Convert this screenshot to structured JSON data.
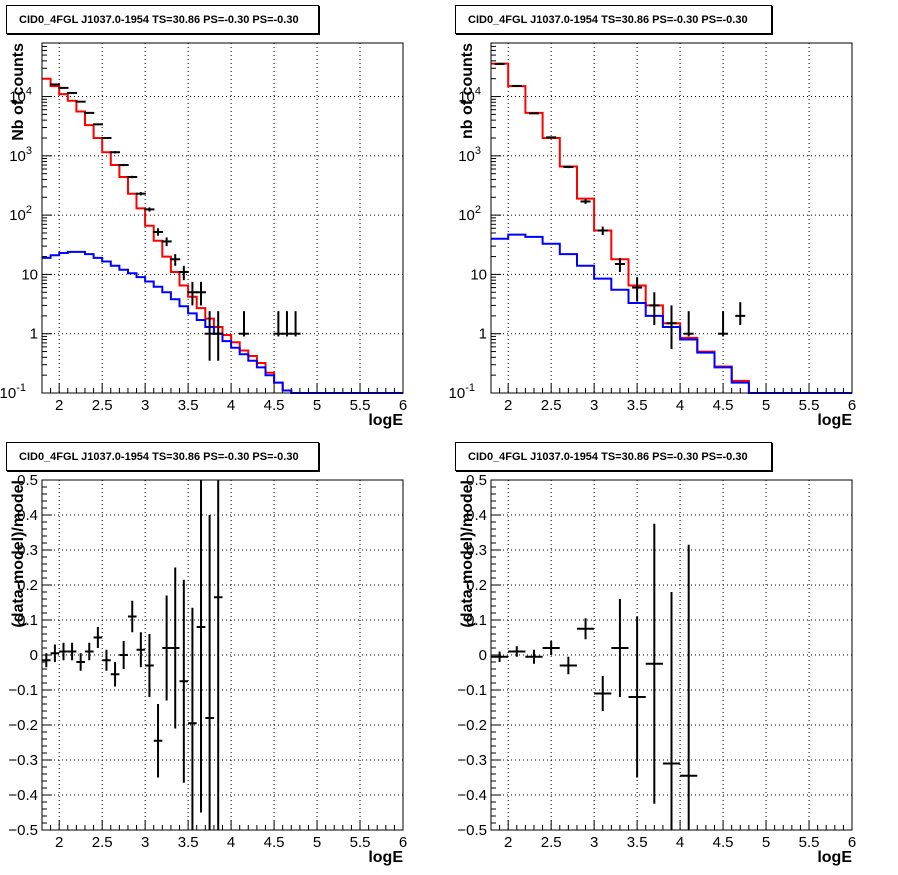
{
  "chart_data": [
    {
      "type": "line",
      "title": "CID0_4FGL J1037.0-1954 TS=30.86 PS=-0.30 PS=-0.30",
      "xlabel": "logE",
      "ylabel": "Nb of counts",
      "yscale": "log",
      "xlim": [
        1.8,
        6.0
      ],
      "ylim": [
        0.1,
        80000
      ],
      "x_ticks": [
        "2",
        "2.5",
        "3",
        "3.5",
        "4",
        "4.5",
        "5",
        "5.5",
        "6"
      ],
      "y_ticks": [
        "10^-1",
        "1",
        "10",
        "10^2",
        "10^3",
        "10^4"
      ],
      "grid": true,
      "step_edges": [
        1.8,
        1.9,
        2.0,
        2.1,
        2.2,
        2.3,
        2.4,
        2.5,
        2.6,
        2.7,
        2.8,
        2.9,
        3.0,
        3.1,
        3.2,
        3.3,
        3.4,
        3.5,
        3.6,
        3.7,
        3.8,
        3.9,
        4.0,
        4.1,
        4.2,
        4.3,
        4.4,
        4.5,
        4.6,
        4.7,
        4.8,
        4.9,
        5.0,
        5.1,
        5.2,
        5.3,
        5.4,
        5.5,
        5.6,
        5.7,
        5.8,
        5.9,
        6.0
      ],
      "series": [
        {
          "color": "#ff0000",
          "kind": "step",
          "values": [
            20000,
            15000,
            11000,
            8500,
            5600,
            3300,
            2000,
            1150,
            700,
            440,
            230,
            130,
            66,
            37,
            20,
            11,
            6.5,
            4.2,
            2.7,
            1.8,
            1.3,
            0.95,
            0.72,
            0.52,
            0.42,
            0.32,
            0.22,
            0.15,
            0.11,
            0.1,
            0.1,
            0.1,
            0.1,
            0.1,
            0.1,
            0.1,
            0.1,
            0.1,
            0.1,
            0.1,
            0.1,
            0.1
          ]
        },
        {
          "color": "#0000ff",
          "kind": "step",
          "values": [
            19,
            21,
            23,
            24,
            24,
            22,
            19,
            16.5,
            14,
            12,
            10.5,
            9,
            7.6,
            6.2,
            5.0,
            3.8,
            2.9,
            2.2,
            1.7,
            1.3,
            1.0,
            0.75,
            0.58,
            0.45,
            0.35,
            0.27,
            0.2,
            0.15,
            0.11,
            0.1,
            0.1,
            0.1,
            0.1,
            0.1,
            0.1,
            0.1,
            0.1,
            0.1,
            0.1,
            0.1,
            0.1,
            0.1
          ]
        },
        {
          "color": "#000000",
          "kind": "points",
          "x": [
            1.95,
            2.05,
            2.15,
            2.25,
            2.35,
            2.45,
            2.55,
            2.65,
            2.75,
            2.85,
            2.95,
            3.05,
            3.15,
            3.25,
            3.35,
            3.45,
            3.55,
            3.65,
            3.75,
            3.85,
            4.15,
            4.55,
            4.65,
            4.75
          ],
          "y": [
            16000,
            14000,
            11500,
            8200,
            5300,
            3400,
            2000,
            1150,
            700,
            440,
            230,
            125,
            52,
            36,
            18,
            11,
            5,
            5,
            1,
            1,
            1,
            1,
            1,
            1
          ],
          "yerr_lo": [
            15800,
            13800,
            11300,
            8100,
            5200,
            3300,
            1950,
            1100,
            670,
            420,
            215,
            115,
            45,
            30,
            14,
            8,
            3,
            3,
            0.35,
            0.35,
            0.9,
            0.9,
            0.9,
            0.9
          ],
          "yerr_hi": [
            16200,
            14200,
            11700,
            8300,
            5400,
            3500,
            2050,
            1200,
            730,
            460,
            245,
            135,
            60,
            42,
            22,
            14,
            7.5,
            7.5,
            2.4,
            2.4,
            2.4,
            2.4,
            2.4,
            2.4
          ]
        }
      ]
    },
    {
      "type": "line",
      "title": "CID0_4FGL J1037.0-1954 TS=30.86 PS=-0.30 PS=-0.30",
      "xlabel": "logE",
      "ylabel": "nb of counts",
      "yscale": "log",
      "xlim": [
        1.8,
        6.0
      ],
      "ylim": [
        0.1,
        80000
      ],
      "x_ticks": [
        "2",
        "2.5",
        "3",
        "3.5",
        "4",
        "4.5",
        "5",
        "5.5",
        "6"
      ],
      "y_ticks": [
        "10^-1",
        "1",
        "10",
        "10^2",
        "10^3",
        "10^4"
      ],
      "grid": true,
      "step_edges": [
        1.8,
        2.0,
        2.2,
        2.4,
        2.6,
        2.8,
        3.0,
        3.2,
        3.4,
        3.6,
        3.8,
        4.0,
        4.2,
        4.4,
        4.6,
        4.8,
        5.0,
        5.2,
        5.4,
        5.6,
        5.8,
        6.0
      ],
      "series": [
        {
          "color": "#ff0000",
          "kind": "step",
          "values": [
            36000,
            15000,
            5300,
            2000,
            660,
            190,
            55,
            18,
            6.5,
            3.0,
            1.5,
            0.85,
            0.5,
            0.28,
            0.16,
            0.1,
            0.1,
            0.1,
            0.1,
            0.1,
            0.1
          ]
        },
        {
          "color": "#0000ff",
          "kind": "step",
          "values": [
            40,
            47,
            43,
            33,
            22,
            14,
            8.5,
            5.5,
            3.3,
            2.0,
            1.3,
            0.8,
            0.48,
            0.27,
            0.15,
            0.1,
            0.1,
            0.1,
            0.1,
            0.1,
            0.1
          ]
        },
        {
          "color": "#000000",
          "kind": "points",
          "x": [
            1.9,
            2.1,
            2.3,
            2.5,
            2.7,
            2.9,
            3.1,
            3.3,
            3.5,
            3.7,
            3.9,
            4.1,
            4.5,
            4.7
          ],
          "y": [
            35500,
            15100,
            5200,
            2050,
            650,
            170,
            55,
            15,
            6,
            3,
            1.5,
            1,
            1,
            2
          ],
          "yerr_lo": [
            35300,
            14900,
            5100,
            2000,
            620,
            155,
            46,
            11,
            3.5,
            1.4,
            0.55,
            0.9,
            0.9,
            1.4
          ],
          "yerr_hi": [
            35700,
            15300,
            5300,
            2100,
            680,
            185,
            64,
            19,
            9,
            5,
            3,
            2.4,
            2.4,
            3.4
          ]
        }
      ]
    },
    {
      "type": "scatter",
      "title": "CID0_4FGL J1037.0-1954 TS=30.86 PS=-0.30 PS=-0.30",
      "xlabel": "logE",
      "ylabel": "(data-model)/model",
      "xlim": [
        1.8,
        6.0
      ],
      "ylim": [
        -0.5,
        0.5
      ],
      "x_ticks": [
        "2",
        "2.5",
        "3",
        "3.5",
        "4",
        "4.5",
        "5",
        "5.5",
        "6"
      ],
      "y_ticks": [
        "-0.5",
        "-0.4",
        "-0.3",
        "-0.2",
        "-0.1",
        "0",
        "0.1",
        "0.2",
        "0.3",
        "0.4",
        "0.5"
      ],
      "grid": true,
      "bin_halfwidth": 0.05,
      "points": {
        "x": [
          1.85,
          1.95,
          2.05,
          2.15,
          2.25,
          2.35,
          2.45,
          2.55,
          2.65,
          2.75,
          2.85,
          2.95,
          3.05,
          3.15,
          3.25,
          3.35,
          3.45,
          3.55,
          3.65,
          3.75,
          3.85
        ],
        "y": [
          -0.015,
          0.005,
          0.01,
          0.01,
          -0.02,
          0.01,
          0.05,
          -0.015,
          -0.055,
          0.0,
          0.11,
          0.015,
          -0.03,
          -0.245,
          0.02,
          0.02,
          -0.075,
          -0.195,
          0.08,
          -0.18,
          0.165
        ],
        "err": [
          0.02,
          0.025,
          0.025,
          0.025,
          0.025,
          0.025,
          0.03,
          0.03,
          0.035,
          0.04,
          0.045,
          0.05,
          0.09,
          0.105,
          0.15,
          0.23,
          0.29,
          0.33,
          0.53,
          0.58,
          0.7
        ]
      }
    },
    {
      "type": "scatter",
      "title": "CID0_4FGL J1037.0-1954 TS=30.86 PS=-0.30 PS=-0.30",
      "xlabel": "logE",
      "ylabel": "(data-model)/model",
      "xlim": [
        1.8,
        6.0
      ],
      "ylim": [
        -0.5,
        0.5
      ],
      "x_ticks": [
        "2",
        "2.5",
        "3",
        "3.5",
        "4",
        "4.5",
        "5",
        "5.5",
        "6"
      ],
      "y_ticks": [
        "-0.5",
        "-0.4",
        "-0.3",
        "-0.2",
        "-0.1",
        "0",
        "0.1",
        "0.2",
        "0.3",
        "0.4",
        "0.5"
      ],
      "grid": true,
      "bin_halfwidth": 0.1,
      "points": {
        "x": [
          1.9,
          2.1,
          2.3,
          2.5,
          2.7,
          2.9,
          3.1,
          3.3,
          3.5,
          3.7,
          3.9,
          4.1
        ],
        "y": [
          -0.005,
          0.01,
          -0.005,
          0.02,
          -0.03,
          0.075,
          -0.11,
          0.02,
          -0.12,
          -0.025,
          -0.31,
          -0.345
        ],
        "err": [
          0.015,
          0.015,
          0.02,
          0.02,
          0.025,
          0.03,
          0.05,
          0.14,
          0.23,
          0.4,
          0.49,
          0.66
        ]
      }
    }
  ]
}
